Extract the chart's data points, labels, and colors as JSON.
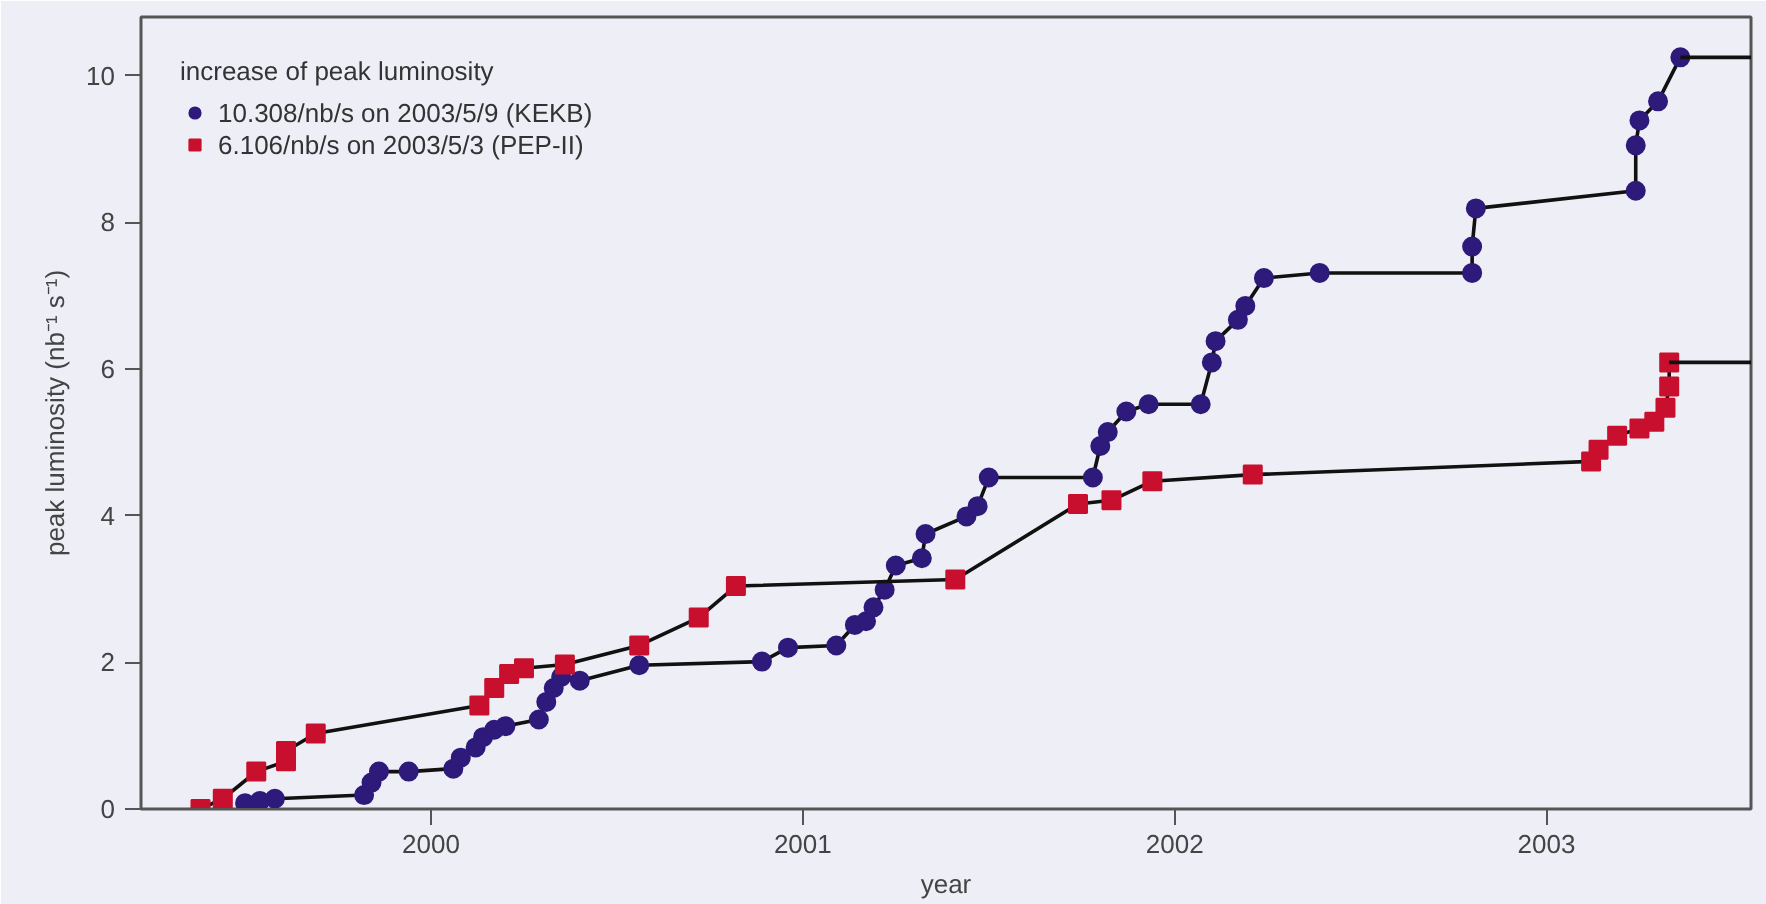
{
  "chart_data": {
    "type": "line",
    "xlabel": "year",
    "ylabel": "peak luminosity (nb⁻¹ s⁻¹)",
    "legend_title": "increase of peak luminosity",
    "legend": "top left",
    "grid": false,
    "xlim": [
      1999.22,
      2003.55
    ],
    "xticks": [
      2000,
      2001,
      2002,
      2003
    ],
    "ylim": [
      0,
      10.8
    ],
    "yticks": [
      0,
      2,
      4,
      6,
      8,
      10
    ],
    "series": [
      {
        "name": "10.308/nb/s on 2003/5/9 (KEKB)",
        "color": "#111111",
        "marker": "circle",
        "colors": [
          "#2e1a7a",
          "#2e1a7a",
          "#2e1a7a",
          "#2e1a7a",
          "#2e1a7a",
          "#2e1a7a",
          "#2e1a7a",
          "#2e1a7a",
          "#2e1a7a",
          "#2e1a7a",
          "#2e1a7a",
          "#2e1a7a",
          "#2e1a7a",
          "#2e1a7a",
          "#2e1a7a",
          "#2e1a7a",
          "#2e1a7a",
          "#2e1a7a",
          "#2e1a7a",
          "#2e1a7a",
          "#2e1a7a",
          "#2e1a7a",
          "#2e1a7a",
          "#2e1a7a",
          "#2e1a7a",
          "#2e1a7a",
          "#2e1a7a",
          "#2e1a7a",
          "#2e1a7a",
          "#2e1a7a",
          "#2e1a7a",
          "#2e1a7a",
          "#2e1a7a",
          "#2e1a7a",
          "#2e1a7a",
          "#2e1a7a",
          "#2e1a7a",
          "#2e1a7a",
          "#2e1a7a",
          "#2e1a7a",
          "#2e1a7a",
          "#2e1a7a",
          "#2e1a7a",
          "#2e1a7a",
          "#2e1a7a",
          "#2e1a7a",
          "#2e1a7a",
          "#2e1a7a",
          "#2e1a7a",
          "#2e1a7a",
          "#2e1a7a",
          "#2e1a7a"
        ],
        "x": [
          1999.5,
          1999.54,
          1999.58,
          1999.82,
          1999.84,
          1999.86,
          1999.94,
          2000.06,
          2000.08,
          2000.12,
          2000.14,
          2000.17,
          2000.2,
          2000.29,
          2000.31,
          2000.33,
          2000.35,
          2000.4,
          2000.56,
          2000.89,
          2000.96,
          2001.09,
          2001.14,
          2001.17,
          2001.19,
          2001.22,
          2001.25,
          2001.32,
          2001.33,
          2001.44,
          2001.47,
          2001.5,
          2001.78,
          2001.8,
          2001.82,
          2001.87,
          2001.93,
          2002.07,
          2002.1,
          2002.11,
          2002.17,
          2002.19,
          2002.24,
          2002.39,
          2002.8,
          2002.8,
          2002.81,
          2003.24,
          2003.24,
          2003.25,
          2003.3,
          2003.36
        ],
        "values": [
          0.08,
          0.11,
          0.14,
          0.19,
          0.36,
          0.51,
          0.51,
          0.55,
          0.7,
          0.84,
          0.98,
          1.08,
          1.13,
          1.22,
          1.46,
          1.65,
          1.8,
          1.75,
          1.96,
          2.01,
          2.2,
          2.23,
          2.51,
          2.56,
          2.75,
          2.99,
          3.32,
          3.42,
          3.75,
          3.99,
          4.13,
          4.52,
          4.52,
          4.95,
          5.14,
          5.42,
          5.52,
          5.52,
          6.09,
          6.38,
          6.67,
          6.86,
          7.24,
          7.31,
          7.31,
          7.67,
          8.19,
          8.43,
          9.05,
          9.39,
          9.65,
          10.25
        ]
      },
      {
        "name": "6.106/nb/s on 2003/5/3 (PEP-II)",
        "color": "#111111",
        "marker": "square",
        "colors": [
          "#c8102e",
          "#c8102e",
          "#c8102e",
          "#c8102e",
          "#c8102e",
          "#c8102e",
          "#c8102e",
          "#c8102e",
          "#c8102e",
          "#c8102e",
          "#c8102e",
          "#c8102e",
          "#c8102e",
          "#c8102e",
          "#c8102e",
          "#c8102e",
          "#c8102e",
          "#c8102e",
          "#c8102e",
          "#c8102e",
          "#c8102e",
          "#c8102e",
          "#c8102e",
          "#c8102e",
          "#c8102e",
          "#c8102e",
          "#c8102e"
        ],
        "x": [
          1999.38,
          1999.44,
          1999.53,
          1999.61,
          1999.61,
          1999.69,
          2000.13,
          2000.17,
          2000.21,
          2000.25,
          2000.36,
          2000.56,
          2000.72,
          2000.82,
          2001.41,
          2001.74,
          2001.83,
          2001.94,
          2002.21,
          2003.12,
          2003.14,
          2003.19,
          2003.25,
          2003.29,
          2003.32,
          2003.33,
          2003.33
        ],
        "values": [
          0.0,
          0.14,
          0.51,
          0.65,
          0.79,
          1.03,
          1.41,
          1.65,
          1.84,
          1.92,
          1.97,
          2.23,
          2.61,
          3.04,
          3.13,
          4.16,
          4.21,
          4.47,
          4.56,
          4.74,
          4.9,
          5.09,
          5.19,
          5.28,
          5.47,
          5.76,
          6.09
        ]
      },
      {
        "color": "#111111",
        "marker": "none",
        "x": [
          2003.36,
          2003.55
        ],
        "values": [
          10.25,
          10.25
        ]
      },
      {
        "color": "#111111",
        "marker": "none",
        "x": [
          2003.33,
          2003.55
        ],
        "values": [
          6.09,
          6.09
        ]
      }
    ]
  }
}
